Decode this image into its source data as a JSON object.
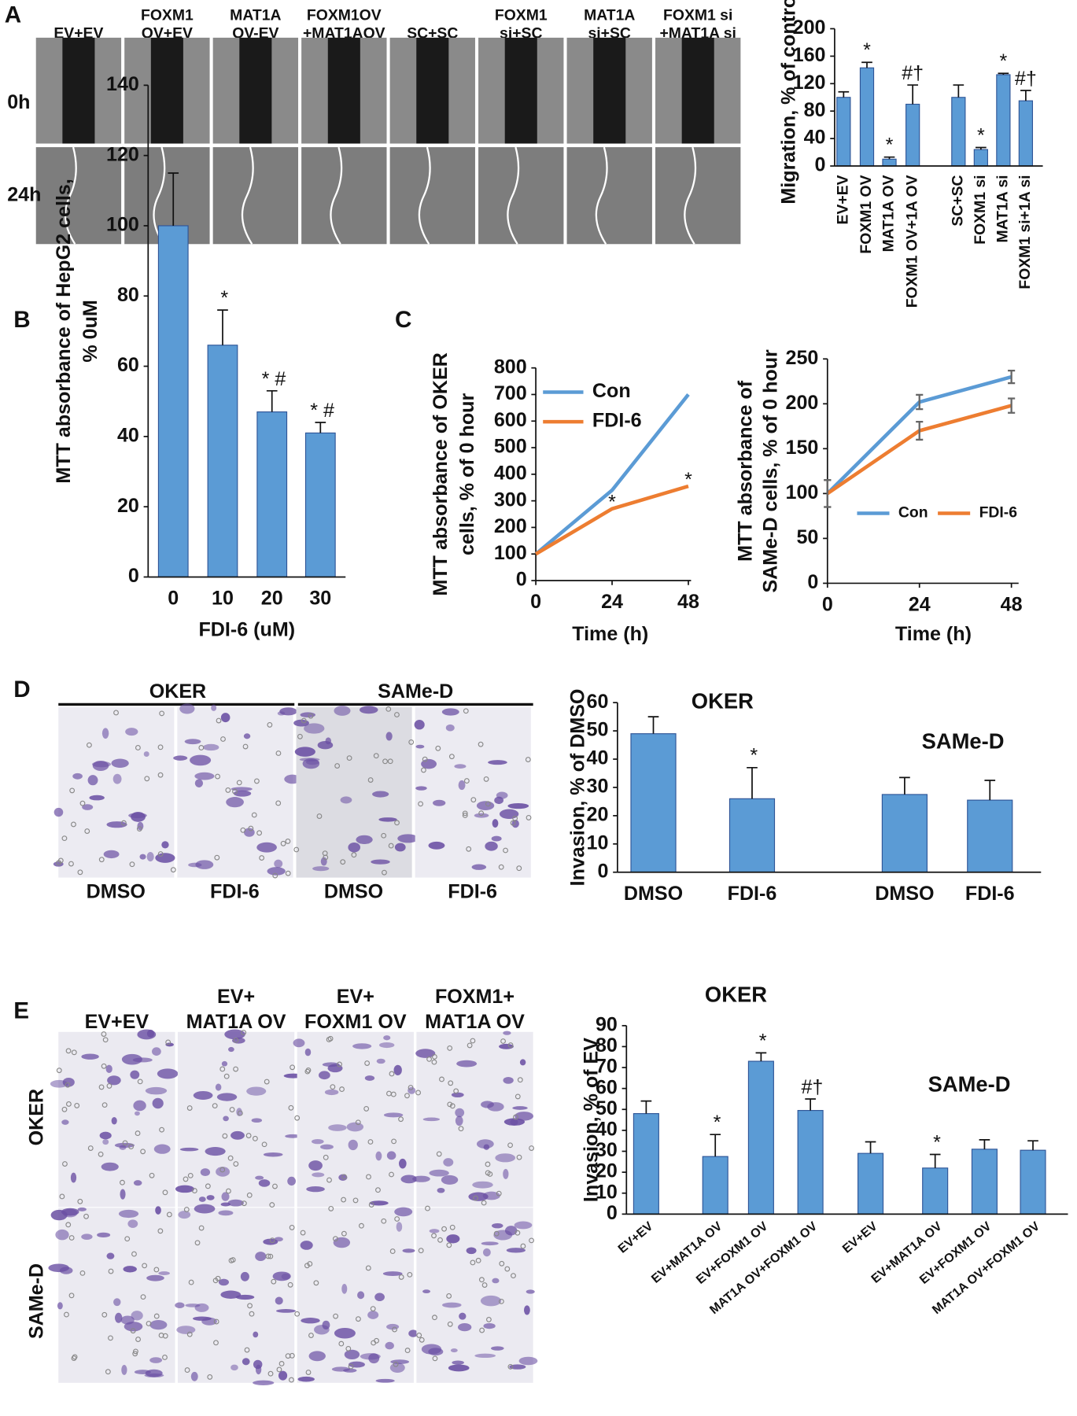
{
  "panel_letters": [
    "A",
    "B",
    "C",
    "D",
    "E"
  ],
  "panel_A_images": {
    "columns": [
      [
        "EV+EV"
      ],
      [
        "FOXM1",
        "OV+EV"
      ],
      [
        "MAT1A",
        "OV-EV"
      ],
      [
        "FOXM1OV",
        "+MAT1AOV"
      ],
      [
        "SC+SC"
      ],
      [
        "FOXM1",
        "si+SC"
      ],
      [
        "MAT1A",
        "si+SC"
      ],
      [
        "FOXM1 si",
        "+MAT1A si"
      ]
    ],
    "rows": [
      "0h",
      "24h"
    ]
  },
  "panel_D_images": {
    "groups": [
      "OKER",
      "SAMe-D"
    ],
    "columns": [
      "DMSO",
      "FDI-6",
      "DMSO",
      "FDI-6"
    ]
  },
  "panel_E_images": {
    "columns": [
      [
        "EV+EV"
      ],
      [
        "EV+",
        "MAT1A OV"
      ],
      [
        "EV+",
        "FOXM1 OV"
      ],
      [
        "FOXM1+",
        "MAT1A OV"
      ]
    ],
    "rows": [
      "OKER",
      "SAMe-D"
    ]
  },
  "chart_data": [
    {
      "type": "bar",
      "ylabel": [
        "Migration, % of control"
      ],
      "categories": [
        "EV+EV",
        "FOXM1 OV",
        "MAT1A OV",
        "FOXM1 OV+1A OV",
        "SC+SC",
        "FOXM1 si",
        "MAT1A si",
        "FOXM1 si+1A si"
      ],
      "values": [
        100,
        143,
        10,
        90,
        100,
        24,
        133,
        95
      ],
      "errors": [
        8,
        8,
        3,
        28,
        18,
        3,
        2,
        15
      ],
      "annotations": [
        null,
        "*",
        "*",
        "#†",
        null,
        "*",
        "*",
        "#†"
      ],
      "color": "#5b9bd5",
      "ylim": [
        0,
        200
      ],
      "yticks": [
        0,
        40,
        80,
        120,
        160,
        200
      ]
    },
    {
      "type": "bar",
      "ylabel": [
        "MTT absorbance of HepG2 cells,",
        "% 0uM"
      ],
      "xlabel": "FDI-6 (uM)",
      "categories": [
        "0",
        "10",
        "20",
        "30"
      ],
      "values": [
        100,
        66,
        47,
        41
      ],
      "errors": [
        15,
        10,
        6,
        3
      ],
      "annotations": [
        null,
        "*",
        "* #",
        "* #"
      ],
      "color": "#5b9bd5",
      "ylim": [
        0,
        140
      ],
      "yticks": [
        0,
        20,
        40,
        60,
        80,
        100,
        120,
        140
      ]
    },
    {
      "type": "line",
      "ylabel": [
        "MTT absorbance of OKER",
        "cells, % of 0 hour"
      ],
      "xlabel": "Time (h)",
      "x": [
        0,
        24,
        48
      ],
      "xlim": [
        0,
        48
      ],
      "xticks": [
        0,
        24,
        48
      ],
      "series": [
        {
          "name": "Con",
          "color": "#5b9bd5",
          "values": [
            100,
            340,
            700
          ]
        },
        {
          "name": "FDI-6",
          "color": "#ed7d31",
          "values": [
            100,
            270,
            355
          ],
          "annotations": [
            null,
            "*",
            "*"
          ]
        }
      ],
      "ylim": [
        0,
        800
      ],
      "yticks": [
        0,
        100,
        200,
        300,
        400,
        500,
        600,
        700,
        800
      ]
    },
    {
      "type": "line",
      "ylabel": [
        "MTT absorbance of",
        "SAMe-D cells, % of 0 hour"
      ],
      "xlabel": "Time (h)",
      "x": [
        0,
        24,
        48
      ],
      "xlim": [
        0,
        48
      ],
      "xticks": [
        0,
        24,
        48
      ],
      "series": [
        {
          "name": "Con",
          "color": "#5b9bd5",
          "values": [
            100,
            202,
            230
          ],
          "errors": [
            15,
            8,
            7
          ]
        },
        {
          "name": "FDI-6",
          "color": "#ed7d31",
          "values": [
            100,
            170,
            198
          ],
          "errors": [
            15,
            10,
            8
          ]
        }
      ],
      "ylim": [
        0,
        250
      ],
      "yticks": [
        0,
        50,
        100,
        150,
        200,
        250
      ]
    },
    {
      "type": "bar",
      "ylabel": [
        "Invasion, % of DMSO"
      ],
      "titles": [
        "OKER",
        "SAMe-D"
      ],
      "categories": [
        "DMSO",
        "FDI-6",
        "DMSO",
        "FDI-6"
      ],
      "values": [
        49,
        26,
        27.5,
        25.5
      ],
      "errors": [
        6,
        11,
        6,
        7
      ],
      "annotations": [
        null,
        "*",
        null,
        null
      ],
      "color": "#5b9bd5",
      "ylim": [
        0,
        60
      ],
      "yticks": [
        0,
        10,
        20,
        30,
        40,
        50,
        60
      ]
    },
    {
      "type": "bar",
      "ylabel": [
        "Invasion, % of EV"
      ],
      "titles": [
        "OKER",
        "SAMe-D"
      ],
      "categories": [
        "EV+EV",
        "EV+MAT1A OV",
        "EV+FOXM1 OV",
        "MAT1A OV+FOXM1 OV",
        "EV+EV",
        "EV+MAT1A OV",
        "EV+FOXM1 OV",
        "MAT1A OV+FOXM1 OV"
      ],
      "values": [
        48,
        27.5,
        73,
        49.5,
        29,
        22,
        31,
        30.5
      ],
      "errors": [
        6,
        10.5,
        4,
        5.5,
        5.5,
        6.5,
        4.5,
        4.5
      ],
      "annotations": [
        null,
        "*",
        "*",
        "#†",
        null,
        "*",
        null,
        null
      ],
      "color": "#5b9bd5",
      "ylim": [
        0,
        90
      ],
      "yticks": [
        0,
        10,
        20,
        30,
        40,
        50,
        60,
        70,
        80,
        90
      ]
    }
  ]
}
